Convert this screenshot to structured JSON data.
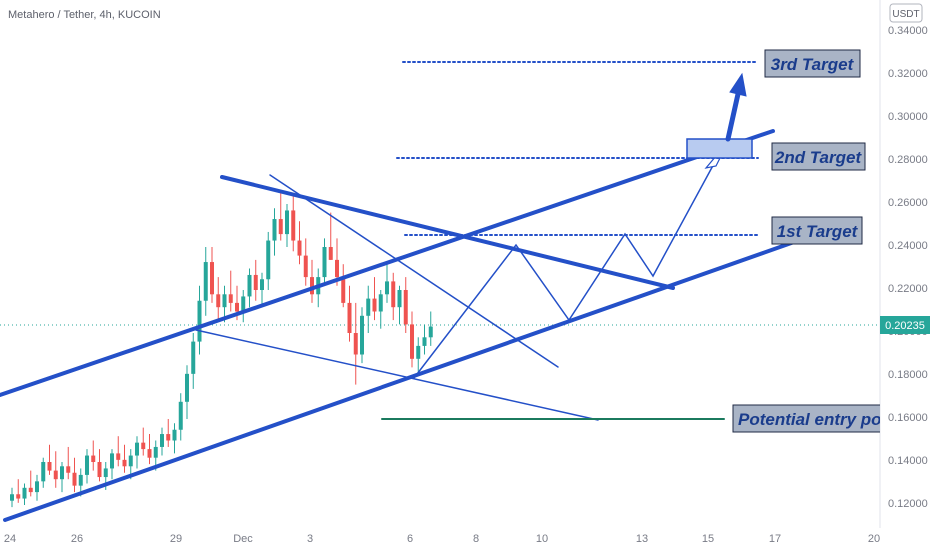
{
  "header": {
    "symbol": "Metahero / Tether, 4h, KUCOIN",
    "currency_button": "USDT"
  },
  "colors": {
    "up": "#26a69a",
    "down": "#ef5350",
    "trend": "#2450c8",
    "price_line": "#26a69a",
    "annotation_fill": "#a9b4c6",
    "annotation_text": "#1a3c8c",
    "target_box": "#b8cbf0"
  },
  "current_price": "0.20235",
  "annotations": {
    "target1": "1st Target",
    "target2": "2nd Target",
    "target3": "3rd Target",
    "entry": "Potential entry po"
  },
  "chart_data": {
    "type": "candlestick",
    "title": "",
    "y_axis": {
      "ticks": [
        "0.34000",
        "0.32000",
        "0.30000",
        "0.28000",
        "0.26000",
        "0.24000",
        "0.22000",
        "0.20000",
        "0.18000",
        "0.16000",
        "0.14000",
        "0.12000"
      ],
      "ylim": [
        0.11,
        0.345
      ],
      "grid": false
    },
    "x_axis": {
      "ticks": [
        "24",
        "26",
        "29",
        "Dec",
        "3",
        "6",
        "8",
        "10",
        "13",
        "15",
        "17",
        "20"
      ],
      "grid": false
    },
    "levels": {
      "target1": 0.244,
      "target2": 0.281,
      "target3": 0.325,
      "entry": 0.159,
      "current": 0.20235
    },
    "candles_ohlc": [
      [
        0.122,
        0.128,
        0.119,
        0.125
      ],
      [
        0.125,
        0.132,
        0.121,
        0.123
      ],
      [
        0.123,
        0.13,
        0.12,
        0.128
      ],
      [
        0.128,
        0.136,
        0.124,
        0.126
      ],
      [
        0.126,
        0.134,
        0.122,
        0.131
      ],
      [
        0.131,
        0.142,
        0.128,
        0.14
      ],
      [
        0.14,
        0.148,
        0.134,
        0.136
      ],
      [
        0.136,
        0.145,
        0.128,
        0.132
      ],
      [
        0.132,
        0.14,
        0.126,
        0.138
      ],
      [
        0.138,
        0.147,
        0.132,
        0.135
      ],
      [
        0.135,
        0.142,
        0.126,
        0.129
      ],
      [
        0.129,
        0.137,
        0.124,
        0.134
      ],
      [
        0.134,
        0.146,
        0.13,
        0.143
      ],
      [
        0.143,
        0.15,
        0.136,
        0.14
      ],
      [
        0.14,
        0.146,
        0.131,
        0.133
      ],
      [
        0.133,
        0.14,
        0.127,
        0.137
      ],
      [
        0.137,
        0.146,
        0.132,
        0.144
      ],
      [
        0.144,
        0.152,
        0.138,
        0.141
      ],
      [
        0.141,
        0.148,
        0.135,
        0.138
      ],
      [
        0.138,
        0.146,
        0.132,
        0.143
      ],
      [
        0.143,
        0.152,
        0.137,
        0.149
      ],
      [
        0.149,
        0.156,
        0.143,
        0.146
      ],
      [
        0.146,
        0.153,
        0.139,
        0.142
      ],
      [
        0.142,
        0.15,
        0.136,
        0.147
      ],
      [
        0.147,
        0.156,
        0.143,
        0.153
      ],
      [
        0.153,
        0.16,
        0.147,
        0.15
      ],
      [
        0.15,
        0.158,
        0.144,
        0.155
      ],
      [
        0.155,
        0.172,
        0.15,
        0.168
      ],
      [
        0.168,
        0.185,
        0.16,
        0.181
      ],
      [
        0.181,
        0.2,
        0.174,
        0.196
      ],
      [
        0.196,
        0.222,
        0.19,
        0.215
      ],
      [
        0.215,
        0.24,
        0.208,
        0.233
      ],
      [
        0.233,
        0.24,
        0.214,
        0.218
      ],
      [
        0.218,
        0.226,
        0.206,
        0.212
      ],
      [
        0.212,
        0.222,
        0.205,
        0.218
      ],
      [
        0.218,
        0.229,
        0.21,
        0.214
      ],
      [
        0.214,
        0.222,
        0.206,
        0.21
      ],
      [
        0.21,
        0.22,
        0.205,
        0.217
      ],
      [
        0.217,
        0.23,
        0.212,
        0.227
      ],
      [
        0.227,
        0.234,
        0.215,
        0.22
      ],
      [
        0.22,
        0.228,
        0.212,
        0.225
      ],
      [
        0.225,
        0.247,
        0.22,
        0.243
      ],
      [
        0.243,
        0.258,
        0.236,
        0.253
      ],
      [
        0.253,
        0.266,
        0.243,
        0.246
      ],
      [
        0.246,
        0.26,
        0.24,
        0.257
      ],
      [
        0.257,
        0.264,
        0.238,
        0.243
      ],
      [
        0.243,
        0.252,
        0.232,
        0.236
      ],
      [
        0.236,
        0.244,
        0.222,
        0.226
      ],
      [
        0.226,
        0.234,
        0.214,
        0.218
      ],
      [
        0.218,
        0.23,
        0.212,
        0.226
      ],
      [
        0.226,
        0.244,
        0.222,
        0.24
      ],
      [
        0.24,
        0.256,
        0.234,
        0.234
      ],
      [
        0.234,
        0.244,
        0.222,
        0.226
      ],
      [
        0.226,
        0.232,
        0.212,
        0.214
      ],
      [
        0.214,
        0.222,
        0.196,
        0.2
      ],
      [
        0.2,
        0.214,
        0.176,
        0.19
      ],
      [
        0.19,
        0.212,
        0.186,
        0.208
      ],
      [
        0.208,
        0.222,
        0.2,
        0.216
      ],
      [
        0.216,
        0.226,
        0.206,
        0.21
      ],
      [
        0.21,
        0.22,
        0.202,
        0.218
      ],
      [
        0.218,
        0.232,
        0.214,
        0.224
      ],
      [
        0.224,
        0.228,
        0.206,
        0.212
      ],
      [
        0.212,
        0.222,
        0.204,
        0.22
      ],
      [
        0.22,
        0.226,
        0.2,
        0.204
      ],
      [
        0.204,
        0.21,
        0.184,
        0.188
      ],
      [
        0.188,
        0.198,
        0.182,
        0.194
      ],
      [
        0.194,
        0.204,
        0.19,
        0.198
      ],
      [
        0.198,
        0.21,
        0.194,
        0.203
      ]
    ]
  }
}
